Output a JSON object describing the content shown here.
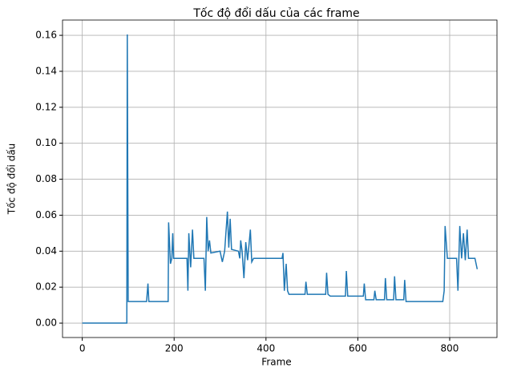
{
  "chart_data": {
    "type": "line",
    "title": "Tốc độ đổi dấu của các frame",
    "x_label": "Frame",
    "y_label": "Tốc độ đổi dấu",
    "x": [
      0,
      97,
      98,
      100,
      140,
      143,
      145,
      187,
      188,
      192,
      195,
      197,
      199,
      228,
      230,
      232,
      236,
      240,
      243,
      265,
      268,
      271,
      274,
      277,
      280,
      300,
      305,
      310,
      316,
      319,
      322,
      325,
      340,
      343,
      345,
      348,
      352,
      356,
      360,
      366,
      369,
      373,
      435,
      437,
      440,
      444,
      447,
      450,
      485,
      487,
      490,
      530,
      532,
      535,
      540,
      573,
      575,
      578,
      612,
      614,
      617,
      635,
      637,
      640,
      658,
      660,
      663,
      678,
      680,
      683,
      700,
      702,
      705,
      785,
      788,
      790,
      795,
      815,
      818,
      822,
      826,
      830,
      834,
      838,
      841,
      855,
      860
    ],
    "series": [
      {
        "name": "Tốc độ đổi dấu",
        "color": "#1f77b4",
        "values": [
          0,
          0,
          0.1605,
          0.012,
          0.012,
          0.022,
          0.012,
          0.012,
          0.056,
          0.033,
          0.036,
          0.05,
          0.036,
          0.036,
          0.018,
          0.05,
          0.031,
          0.052,
          0.036,
          0.036,
          0.018,
          0.059,
          0.04,
          0.046,
          0.039,
          0.04,
          0.034,
          0.04,
          0.062,
          0.042,
          0.058,
          0.041,
          0.04,
          0.036,
          0.046,
          0.04,
          0.025,
          0.045,
          0.035,
          0.052,
          0.034,
          0.036,
          0.036,
          0.039,
          0.018,
          0.033,
          0.018,
          0.016,
          0.016,
          0.023,
          0.016,
          0.016,
          0.028,
          0.016,
          0.015,
          0.015,
          0.029,
          0.015,
          0.015,
          0.022,
          0.013,
          0.013,
          0.018,
          0.013,
          0.013,
          0.025,
          0.013,
          0.013,
          0.026,
          0.013,
          0.013,
          0.024,
          0.012,
          0.012,
          0.018,
          0.054,
          0.036,
          0.036,
          0.018,
          0.054,
          0.036,
          0.05,
          0.035,
          0.052,
          0.036,
          0.036,
          0.03
        ]
      }
    ],
    "xlim": [
      -43,
      903
    ],
    "ylim": [
      -0.008,
      0.1685
    ],
    "xticks": [
      0,
      200,
      400,
      600,
      800
    ],
    "yticks": [
      {
        "value": 0,
        "label": "0.00"
      },
      0.02,
      0.04,
      0.06,
      0.08,
      {
        "value": 0.1,
        "label": "0.10"
      },
      0.12,
      0.14,
      0.16
    ],
    "grid": true
  }
}
